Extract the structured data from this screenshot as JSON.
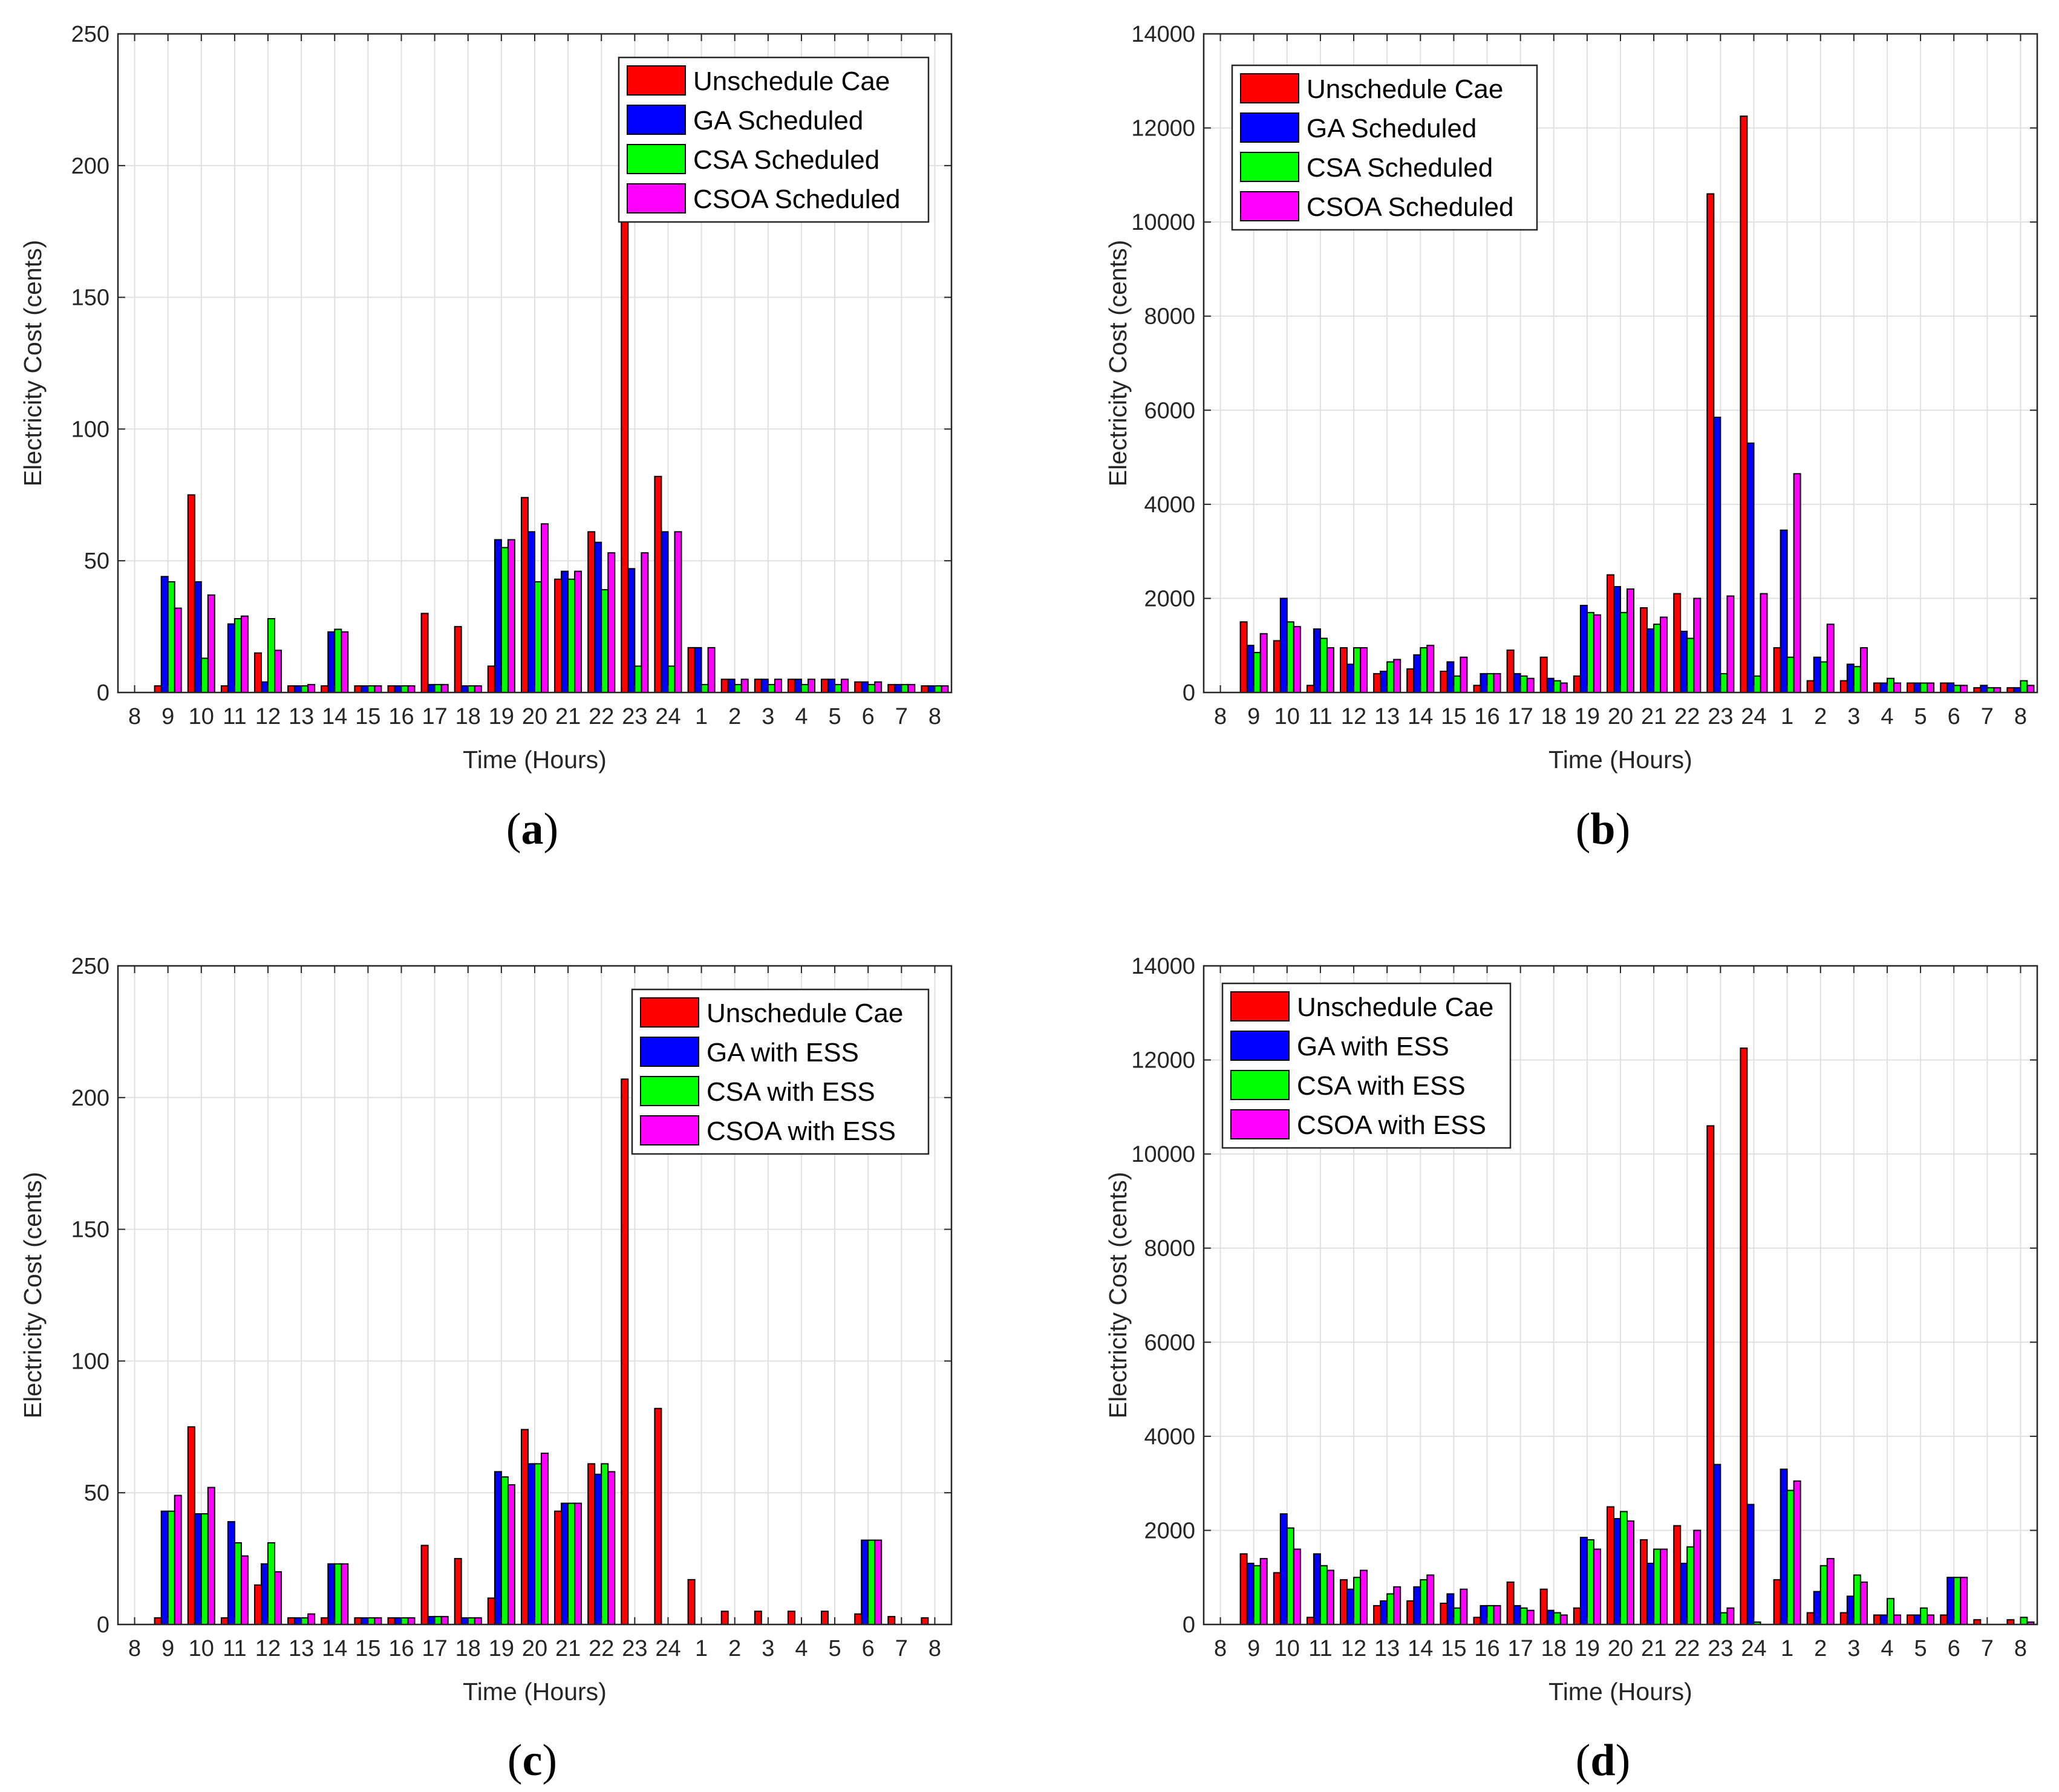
{
  "figure": {
    "colors": {
      "unscheduled": "#ff0000",
      "ga": "#0000ff",
      "csa": "#00ff00",
      "csoa": "#ff00ff",
      "grid": "#e0e0e0",
      "axis": "#262626"
    }
  },
  "chart_data": [
    {
      "type": "bar",
      "panel_label": "a",
      "xlabel": "Time (Hours)",
      "ylabel": "Electricity Cost (cents)",
      "ylim": [
        0,
        250
      ],
      "yticks": [
        0,
        50,
        100,
        150,
        200,
        250
      ],
      "xtick_labels": [
        "8",
        "9",
        "10",
        "11",
        "12",
        "13",
        "14",
        "15",
        "16",
        "17",
        "18",
        "19",
        "20",
        "21",
        "22",
        "23",
        "24",
        "1",
        "2",
        "3",
        "4",
        "5",
        "6",
        "7",
        "8"
      ],
      "categories": [
        "9",
        "10",
        "11",
        "12",
        "13",
        "14",
        "15",
        "16",
        "17",
        "18",
        "19",
        "20",
        "21",
        "22",
        "23",
        "24",
        "1",
        "2",
        "3",
        "4",
        "5",
        "6",
        "7",
        "8"
      ],
      "legend_position": "top-right",
      "series": [
        {
          "name": "Unschedule Cae",
          "values": [
            2.5,
            75,
            2.5,
            15,
            2.5,
            2.5,
            2.5,
            2.5,
            30,
            25,
            10,
            74,
            43,
            61,
            207,
            82,
            17,
            5,
            5,
            5,
            5,
            4,
            3,
            2.5
          ]
        },
        {
          "name": "GA Scheduled",
          "values": [
            44,
            42,
            26,
            4,
            2.5,
            23,
            2.5,
            2.5,
            3,
            2.5,
            58,
            61,
            46,
            57,
            47,
            61,
            17,
            5,
            5,
            5,
            5,
            4,
            3,
            2.5
          ]
        },
        {
          "name": "CSA Scheduled",
          "values": [
            42,
            13,
            28,
            28,
            2.5,
            24,
            2.5,
            2.5,
            3,
            2.5,
            55,
            42,
            43,
            39,
            10,
            10,
            3,
            3,
            3,
            3,
            3,
            3,
            3,
            2.5
          ]
        },
        {
          "name": "CSOA Scheduled",
          "values": [
            32,
            37,
            29,
            16,
            3,
            23,
            2.5,
            2.5,
            3,
            2.5,
            58,
            64,
            46,
            53,
            53,
            61,
            17,
            5,
            5,
            5,
            5,
            4,
            3,
            2.5
          ]
        }
      ]
    },
    {
      "type": "bar",
      "panel_label": "b",
      "xlabel": "Time (Hours)",
      "ylabel": "Electricity Cost (cents)",
      "ylim": [
        0,
        14000
      ],
      "yticks": [
        0,
        2000,
        4000,
        6000,
        8000,
        10000,
        12000,
        14000
      ],
      "xtick_labels": [
        "8",
        "9",
        "10",
        "11",
        "12",
        "13",
        "14",
        "15",
        "16",
        "17",
        "18",
        "19",
        "20",
        "21",
        "22",
        "23",
        "24",
        "1",
        "2",
        "3",
        "4",
        "5",
        "6",
        "7",
        "8"
      ],
      "categories": [
        "9",
        "10",
        "11",
        "12",
        "13",
        "14",
        "15",
        "16",
        "17",
        "18",
        "19",
        "20",
        "21",
        "22",
        "23",
        "24",
        "1",
        "2",
        "3",
        "4",
        "5",
        "6",
        "7",
        "8"
      ],
      "legend_position": "top-left",
      "series": [
        {
          "name": "Unschedule Cae",
          "values": [
            1500,
            1100,
            150,
            950,
            400,
            500,
            450,
            150,
            900,
            750,
            350,
            2500,
            1800,
            2100,
            10600,
            12250,
            950,
            250,
            250,
            200,
            200,
            200,
            100,
            100
          ]
        },
        {
          "name": "GA Scheduled",
          "values": [
            1000,
            2000,
            1350,
            600,
            450,
            800,
            650,
            400,
            400,
            300,
            1850,
            2250,
            1350,
            1300,
            5850,
            5300,
            3450,
            750,
            600,
            200,
            200,
            200,
            150,
            100
          ]
        },
        {
          "name": "CSA Scheduled",
          "values": [
            850,
            1500,
            1150,
            950,
            650,
            950,
            350,
            400,
            350,
            250,
            1700,
            1700,
            1450,
            1150,
            400,
            350,
            750,
            650,
            550,
            300,
            200,
            150,
            100,
            250
          ]
        },
        {
          "name": "CSOA Scheduled",
          "values": [
            1250,
            1400,
            950,
            950,
            700,
            1000,
            750,
            400,
            300,
            200,
            1650,
            2200,
            1600,
            2000,
            2050,
            2100,
            4650,
            1450,
            950,
            200,
            200,
            150,
            100,
            150
          ]
        }
      ]
    },
    {
      "type": "bar",
      "panel_label": "c",
      "xlabel": "Time (Hours)",
      "ylabel": "Electricity Cost (cents)",
      "ylim": [
        0,
        250
      ],
      "yticks": [
        0,
        50,
        100,
        150,
        200,
        250
      ],
      "xtick_labels": [
        "8",
        "9",
        "10",
        "11",
        "12",
        "13",
        "14",
        "15",
        "16",
        "17",
        "18",
        "19",
        "20",
        "21",
        "22",
        "23",
        "24",
        "1",
        "2",
        "3",
        "4",
        "5",
        "6",
        "7",
        "8"
      ],
      "categories": [
        "9",
        "10",
        "11",
        "12",
        "13",
        "14",
        "15",
        "16",
        "17",
        "18",
        "19",
        "20",
        "21",
        "22",
        "23",
        "24",
        "1",
        "2",
        "3",
        "4",
        "5",
        "6",
        "7",
        "8"
      ],
      "legend_position": "top-right",
      "series": [
        {
          "name": "Unschedule Cae",
          "values": [
            2.5,
            75,
            2.5,
            15,
            2.5,
            2.5,
            2.5,
            2.5,
            30,
            25,
            10,
            74,
            43,
            61,
            207,
            82,
            17,
            5,
            5,
            5,
            5,
            4,
            3,
            2.5
          ]
        },
        {
          "name": "GA with ESS",
          "values": [
            43,
            42,
            39,
            23,
            2.5,
            23,
            2.5,
            2.5,
            3,
            2.5,
            58,
            61,
            46,
            57,
            0,
            0,
            0,
            0,
            0,
            0,
            0,
            32,
            0,
            0
          ]
        },
        {
          "name": "CSA with ESS",
          "values": [
            43,
            42,
            31,
            31,
            2.5,
            23,
            2.5,
            2.5,
            3,
            2.5,
            56,
            61,
            46,
            61,
            0,
            0,
            0,
            0,
            0,
            0,
            0,
            32,
            0,
            0
          ]
        },
        {
          "name": "CSOA with ESS",
          "values": [
            49,
            52,
            26,
            20,
            4,
            23,
            2.5,
            2.5,
            3,
            2.5,
            53,
            65,
            46,
            58,
            0,
            0,
            0,
            0,
            0,
            0,
            0,
            32,
            0,
            0
          ]
        }
      ]
    },
    {
      "type": "bar",
      "panel_label": "d",
      "xlabel": "Time (Hours)",
      "ylabel": "Electricity Cost (cents)",
      "ylim": [
        0,
        14000
      ],
      "yticks": [
        0,
        2000,
        4000,
        6000,
        8000,
        10000,
        12000,
        14000
      ],
      "xtick_labels": [
        "8",
        "9",
        "10",
        "11",
        "12",
        "13",
        "14",
        "15",
        "16",
        "17",
        "18",
        "19",
        "20",
        "21",
        "22",
        "23",
        "24",
        "1",
        "2",
        "3",
        "4",
        "5",
        "6",
        "7",
        "8"
      ],
      "categories": [
        "9",
        "10",
        "11",
        "12",
        "13",
        "14",
        "15",
        "16",
        "17",
        "18",
        "19",
        "20",
        "21",
        "22",
        "23",
        "24",
        "1",
        "2",
        "3",
        "4",
        "5",
        "6",
        "7",
        "8"
      ],
      "legend_position": "top-left",
      "series": [
        {
          "name": "Unschedule Cae",
          "values": [
            1500,
            1100,
            150,
            950,
            400,
            500,
            450,
            150,
            900,
            750,
            350,
            2500,
            1800,
            2100,
            10600,
            12250,
            950,
            250,
            250,
            200,
            200,
            200,
            100,
            100
          ]
        },
        {
          "name": "GA with ESS",
          "values": [
            1300,
            2350,
            1500,
            750,
            500,
            800,
            650,
            400,
            400,
            300,
            1850,
            2250,
            1300,
            1300,
            3400,
            2550,
            3300,
            700,
            600,
            200,
            200,
            1000,
            0,
            0
          ]
        },
        {
          "name": "CSA with ESS",
          "values": [
            1250,
            2050,
            1250,
            1000,
            650,
            950,
            350,
            400,
            350,
            250,
            1800,
            2400,
            1600,
            1650,
            250,
            50,
            2850,
            1250,
            1050,
            550,
            350,
            1000,
            0,
            150
          ]
        },
        {
          "name": "CSOA with ESS",
          "values": [
            1400,
            1600,
            1150,
            1150,
            800,
            1050,
            750,
            400,
            300,
            200,
            1600,
            2200,
            1600,
            2000,
            350,
            0,
            3050,
            1400,
            900,
            200,
            200,
            1000,
            0,
            50
          ]
        }
      ]
    }
  ]
}
